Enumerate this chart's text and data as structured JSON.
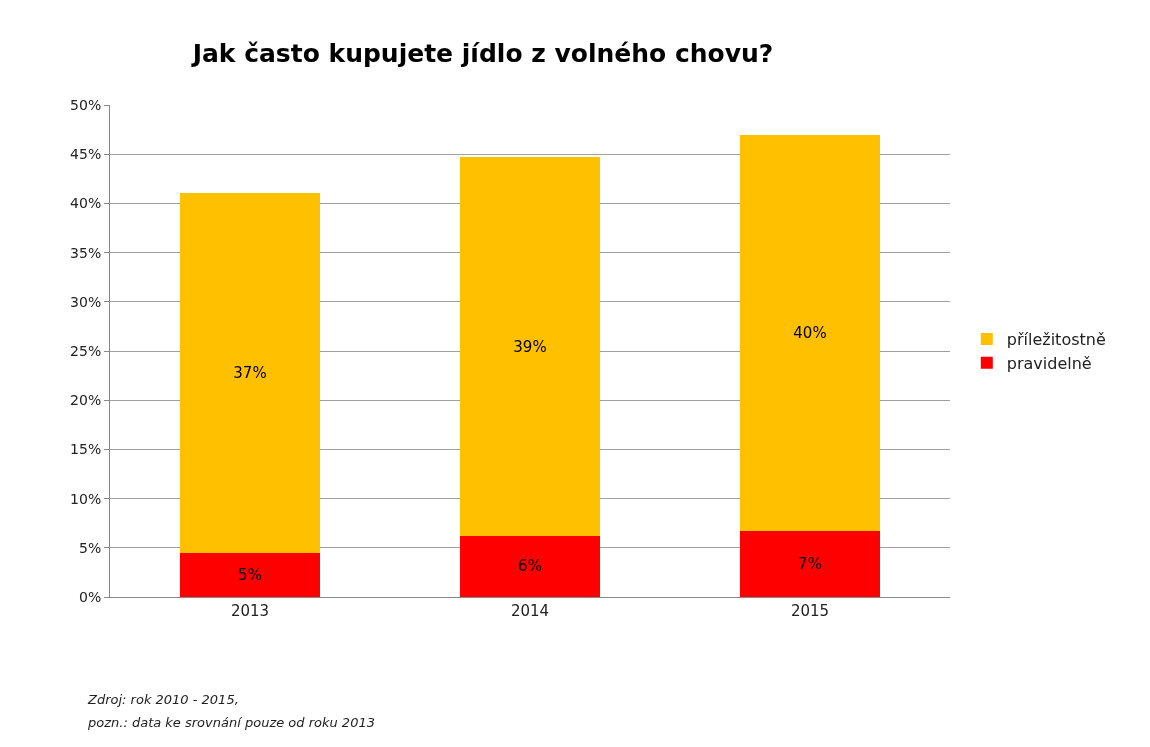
{
  "chart_data": {
    "type": "bar",
    "title": "Jak často kupujete jídlo z volného chovu?",
    "categories": [
      "2013",
      "2014",
      "2015"
    ],
    "stacked": true,
    "series": [
      {
        "name": "pravidelně",
        "color": "#ff0000",
        "values": [
          4.5,
          6.2,
          6.7
        ],
        "value_labels": [
          "5%",
          "6%",
          "7%"
        ]
      },
      {
        "name": "příležitostně",
        "color": "#ffc000",
        "values": [
          36.6,
          38.5,
          40.3
        ],
        "value_labels": [
          "37%",
          "39%",
          "40%"
        ]
      }
    ],
    "ylim": [
      0,
      50
    ],
    "yticks": [
      {
        "value": 0,
        "label": "0%"
      },
      {
        "value": 5,
        "label": "5%"
      },
      {
        "value": 10,
        "label": "10%"
      },
      {
        "value": 15,
        "label": "15%"
      },
      {
        "value": 20,
        "label": "20%"
      },
      {
        "value": 25,
        "label": "25%"
      },
      {
        "value": 30,
        "label": "30%"
      },
      {
        "value": 35,
        "label": "35%"
      },
      {
        "value": 40,
        "label": "40%"
      },
      {
        "value": 45,
        "label": "45%"
      },
      {
        "value": 50,
        "label": "50%"
      }
    ],
    "grid": "y",
    "legend": "right",
    "annotations": [
      "Zdroj: rok 2010 - 2015,",
      "pozn.: data ke srovnání pouze od roku 2013"
    ]
  }
}
